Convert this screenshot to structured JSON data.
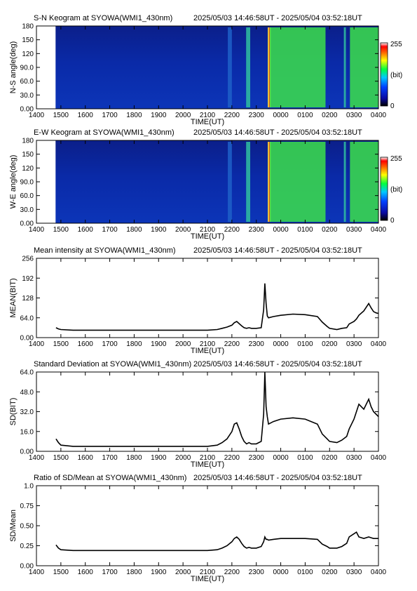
{
  "x_ticks": [
    "1400",
    "1500",
    "1600",
    "1700",
    "1800",
    "1900",
    "2000",
    "2100",
    "2200",
    "2300",
    "0000",
    "0100",
    "0200",
    "0300",
    "0400"
  ],
  "time_range": "2025/05/03 14:46:58UT - 2025/05/04 03:52:18UT",
  "xlabel": "TIME(UT)",
  "colorbar": {
    "max_label": "255",
    "unit_label": "(bit)",
    "min_label": "0"
  },
  "colors": {
    "line": "#000000",
    "keogram_bg": "#0a2a9a"
  },
  "chart_data": [
    {
      "type": "heatmap",
      "title": "S-N Keogram at SYOWA(WMI1_430nm)",
      "ylabel": "N-S angle(deg)",
      "y_ticks": [
        "180",
        "150",
        "120",
        "90.0",
        "60.0",
        "30.0",
        "0.00"
      ],
      "ylim": [
        0,
        180
      ],
      "bright_bands": [
        {
          "start": "2150",
          "end": "2200",
          "level": 0.3
        },
        {
          "start": "2235",
          "end": "2245",
          "level": 0.5
        },
        {
          "start": "2330",
          "end": "2333",
          "level": 1.0
        },
        {
          "start": "2333",
          "end": "0150",
          "level": 0.6
        },
        {
          "start": "0235",
          "end": "0240",
          "level": 0.5
        },
        {
          "start": "0250",
          "end": "0400",
          "level": 0.6
        }
      ]
    },
    {
      "type": "heatmap",
      "title": "E-W Keogram at SYOWA(WMI1_430nm)",
      "ylabel": "W-E angle(deg)",
      "y_ticks": [
        "180",
        "150",
        "120",
        "90.0",
        "60.0",
        "30.0",
        "0.00"
      ],
      "ylim": [
        0,
        180
      ],
      "bright_bands": [
        {
          "start": "2150",
          "end": "2200",
          "level": 0.3
        },
        {
          "start": "2235",
          "end": "2245",
          "level": 0.5
        },
        {
          "start": "2330",
          "end": "2333",
          "level": 1.0
        },
        {
          "start": "2333",
          "end": "0150",
          "level": 0.6
        },
        {
          "start": "0235",
          "end": "0240",
          "level": 0.5
        },
        {
          "start": "0250",
          "end": "0400",
          "level": 0.6
        }
      ]
    },
    {
      "type": "line",
      "title": "Mean intensity at SYOWA(WMI1_430nm)",
      "ylabel": "MEAN(BIT)",
      "y_ticks": [
        "256",
        "192",
        "128",
        "64.0",
        "0.00"
      ],
      "ylim": [
        0,
        256
      ],
      "series": [
        {
          "x_hours": [
            14.8,
            14.9,
            15.0,
            15.5,
            16.0,
            17.0,
            18.0,
            19.0,
            20.0,
            21.0,
            21.4,
            21.6,
            21.8,
            22.0,
            22.1,
            22.2,
            22.3,
            22.4,
            22.5,
            22.6,
            22.7,
            22.8,
            23.0,
            23.2,
            23.3,
            23.35,
            23.4,
            23.45,
            23.5,
            23.7,
            24.0,
            24.5,
            25.0,
            25.5,
            25.7,
            25.9,
            26.0,
            26.3,
            26.5,
            26.7,
            26.8,
            27.0,
            27.1,
            27.2,
            27.4,
            27.6,
            27.7,
            27.8,
            27.9,
            28.0
          ],
          "values": [
            32,
            28,
            26,
            24,
            24,
            24,
            24,
            24,
            24,
            24,
            26,
            30,
            34,
            40,
            48,
            52,
            45,
            38,
            32,
            30,
            32,
            30,
            30,
            32,
            90,
            175,
            110,
            70,
            64,
            68,
            72,
            76,
            74,
            68,
            50,
            36,
            30,
            26,
            30,
            32,
            44,
            52,
            60,
            72,
            86,
            110,
            96,
            84,
            80,
            78
          ]
        }
      ]
    },
    {
      "type": "line",
      "title": "Standard Deviation at SYOWA(WMI1_430nm)",
      "ylabel": "SD(BIT)",
      "y_ticks": [
        "64.0",
        "48.0",
        "32.0",
        "16.0",
        "0.00"
      ],
      "ylim": [
        0,
        64
      ],
      "series": [
        {
          "x_hours": [
            14.8,
            14.9,
            15.0,
            15.5,
            16.0,
            17.0,
            18.0,
            19.0,
            20.0,
            21.0,
            21.4,
            21.6,
            21.8,
            22.0,
            22.1,
            22.2,
            22.3,
            22.4,
            22.5,
            22.6,
            22.7,
            22.8,
            23.0,
            23.2,
            23.3,
            23.35,
            23.4,
            23.45,
            23.5,
            23.7,
            24.0,
            24.5,
            25.0,
            25.5,
            25.7,
            25.9,
            26.0,
            26.3,
            26.5,
            26.7,
            26.8,
            27.0,
            27.1,
            27.2,
            27.4,
            27.6,
            27.7,
            27.8,
            27.9,
            28.0
          ],
          "values": [
            10,
            7,
            5,
            4,
            4,
            4,
            4,
            4,
            4,
            4,
            5,
            7,
            10,
            16,
            22,
            23,
            18,
            12,
            8,
            6,
            7,
            6,
            6,
            8,
            30,
            64,
            36,
            28,
            22,
            24,
            26,
            27,
            26,
            22,
            14,
            10,
            8,
            7,
            9,
            12,
            18,
            26,
            32,
            38,
            34,
            42,
            36,
            32,
            30,
            28
          ]
        }
      ]
    },
    {
      "type": "line",
      "title": "Ratio of SD/Mean at SYOWA(WMI1_430nm)",
      "ylabel": "SD/Mean",
      "y_ticks": [
        "1.0",
        "0.75",
        "0.50",
        "0.25",
        "0.00"
      ],
      "ylim": [
        0,
        1.0
      ],
      "series": [
        {
          "x_hours": [
            14.8,
            14.9,
            15.0,
            15.5,
            16.0,
            17.0,
            18.0,
            19.0,
            20.0,
            21.0,
            21.4,
            21.6,
            21.8,
            22.0,
            22.1,
            22.2,
            22.3,
            22.4,
            22.5,
            22.6,
            22.7,
            22.8,
            23.0,
            23.2,
            23.3,
            23.35,
            23.4,
            23.45,
            23.5,
            23.7,
            24.0,
            24.5,
            25.0,
            25.5,
            25.7,
            25.9,
            26.0,
            26.3,
            26.5,
            26.7,
            26.8,
            27.0,
            27.1,
            27.2,
            27.4,
            27.6,
            27.7,
            27.8,
            27.9,
            28.0
          ],
          "values": [
            0.26,
            0.22,
            0.2,
            0.19,
            0.19,
            0.19,
            0.19,
            0.19,
            0.19,
            0.19,
            0.2,
            0.22,
            0.25,
            0.3,
            0.34,
            0.36,
            0.33,
            0.28,
            0.24,
            0.22,
            0.23,
            0.22,
            0.22,
            0.24,
            0.3,
            0.36,
            0.33,
            0.33,
            0.32,
            0.33,
            0.34,
            0.34,
            0.34,
            0.33,
            0.27,
            0.24,
            0.22,
            0.22,
            0.24,
            0.28,
            0.36,
            0.4,
            0.42,
            0.36,
            0.34,
            0.36,
            0.35,
            0.34,
            0.34,
            0.34
          ]
        }
      ]
    }
  ]
}
